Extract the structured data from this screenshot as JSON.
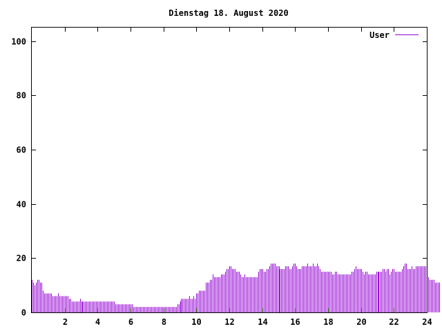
{
  "chart_data": {
    "type": "bar",
    "title": "Dienstag 18. August 2020",
    "xlabel": "",
    "ylabel": "",
    "xlim": [
      0,
      24
    ],
    "ylim": [
      0,
      105
    ],
    "xticks": [
      2,
      4,
      6,
      8,
      10,
      12,
      14,
      16,
      18,
      20,
      22,
      24
    ],
    "yticks": [
      0,
      20,
      40,
      60,
      80,
      100
    ],
    "legend": "top-right",
    "grid": false,
    "color": "#9400d3",
    "series": [
      {
        "name": "User",
        "sample_interval_minutes": 5,
        "values": [
          12,
          11,
          10,
          11,
          12,
          12,
          11,
          11,
          8,
          7,
          7,
          7,
          7,
          7,
          7,
          6,
          6,
          6,
          6,
          7,
          6,
          6,
          6,
          6,
          6,
          6,
          6,
          5,
          5,
          4,
          4,
          4,
          4,
          4,
          4,
          5,
          4,
          4,
          4,
          4,
          4,
          4,
          4,
          4,
          4,
          4,
          4,
          4,
          4,
          4,
          4,
          4,
          4,
          4,
          4,
          4,
          4,
          4,
          4,
          4,
          4,
          3,
          3,
          3,
          3,
          3,
          3,
          3,
          3,
          3,
          3,
          3,
          3,
          3,
          2,
          2,
          2,
          2,
          2,
          2,
          2,
          2,
          2,
          2,
          2,
          2,
          2,
          2,
          2,
          2,
          2,
          2,
          2,
          2,
          2,
          2,
          2,
          2,
          2,
          2,
          2,
          2,
          2,
          2,
          2,
          2,
          3,
          3,
          4,
          5,
          5,
          5,
          5,
          5,
          5,
          6,
          5,
          5,
          6,
          5,
          7,
          7,
          8,
          8,
          8,
          8,
          8,
          11,
          11,
          11,
          12,
          12,
          14,
          13,
          13,
          13,
          13,
          13,
          14,
          14,
          14,
          15,
          16,
          16,
          17,
          17,
          16,
          16,
          16,
          15,
          15,
          15,
          14,
          13,
          13,
          14,
          13,
          13,
          13,
          13,
          13,
          13,
          13,
          13,
          13,
          15,
          16,
          16,
          16,
          15,
          15,
          16,
          16,
          17,
          18,
          18,
          18,
          18,
          17,
          17,
          17,
          16,
          16,
          16,
          16,
          17,
          17,
          17,
          16,
          16,
          17,
          18,
          18,
          17,
          16,
          16,
          16,
          17,
          17,
          17,
          17,
          18,
          17,
          17,
          17,
          18,
          17,
          17,
          18,
          17,
          16,
          15,
          15,
          15,
          15,
          15,
          15,
          15,
          15,
          14,
          14,
          15,
          15,
          14,
          14,
          14,
          14,
          14,
          14,
          14,
          14,
          14,
          14,
          15,
          15,
          16,
          17,
          16,
          16,
          16,
          16,
          15,
          14,
          15,
          15,
          14,
          14,
          14,
          14,
          14,
          14,
          15,
          15,
          15,
          15,
          15,
          16,
          16,
          15,
          16,
          16,
          14,
          15,
          16,
          16,
          15,
          15,
          15,
          15,
          15,
          16,
          17,
          18,
          18,
          16,
          16,
          16,
          17,
          16,
          16,
          17,
          17,
          17,
          17,
          17,
          17,
          17,
          17,
          15,
          13,
          12,
          12,
          12,
          12,
          11,
          11,
          11,
          11
        ]
      }
    ]
  }
}
